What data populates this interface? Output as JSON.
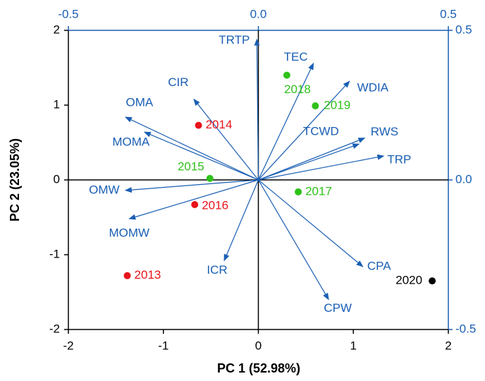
{
  "chart_data": {
    "type": "biplot",
    "xlabel": "PC 1 (52.98%)",
    "ylabel": "PC 2 (23.05%)",
    "xlim": [
      -2,
      2
    ],
    "ylim": [
      -2,
      2
    ],
    "xticks": [
      -2,
      -1,
      0,
      1,
      2
    ],
    "yticks": [
      -2,
      -1,
      0,
      1,
      2
    ],
    "x2lim": [
      -0.5,
      0.5
    ],
    "y2lim": [
      -0.5,
      0.5
    ],
    "x2ticks": [
      -0.5,
      {
        "value": 0,
        "label": "0.0"
      },
      0.5
    ],
    "y2ticks": [
      -0.5,
      {
        "value": 0,
        "label": "0.0"
      },
      0.5
    ],
    "scores": {
      "names": [
        "2013",
        "2014",
        "2015",
        "2016",
        "2017",
        "2018",
        "2019",
        "2020"
      ],
      "x": [
        -1.38,
        -0.63,
        -0.51,
        -0.67,
        0.42,
        0.3,
        0.6,
        1.83
      ],
      "y": [
        -1.28,
        0.73,
        0.02,
        -0.33,
        -0.16,
        1.4,
        0.99,
        -1.35
      ],
      "colors": [
        "#e8141b",
        "#e8141b",
        "#2fc21a",
        "#e8141b",
        "#2fc21a",
        "#2fc21a",
        "#2fc21a",
        "#000000"
      ]
    },
    "loadings": {
      "color": "#1a5fb4",
      "names": [
        "TRTP",
        "TEC",
        "WDIA",
        "RWS",
        "TCWD",
        "TRP",
        "CPA",
        "CPW",
        "ICR",
        "MOMW",
        "OMW",
        "MOMA",
        "OMA",
        "CIR"
      ],
      "x": [
        -0.004,
        0.145,
        0.24,
        0.28,
        0.265,
        0.33,
        0.275,
        0.185,
        -0.09,
        -0.34,
        -0.35,
        -0.3,
        -0.35,
        -0.17
      ],
      "y": [
        0.47,
        0.39,
        0.33,
        0.14,
        0.12,
        0.08,
        -0.29,
        -0.4,
        -0.27,
        -0.13,
        -0.035,
        0.16,
        0.21,
        0.27
      ]
    }
  }
}
